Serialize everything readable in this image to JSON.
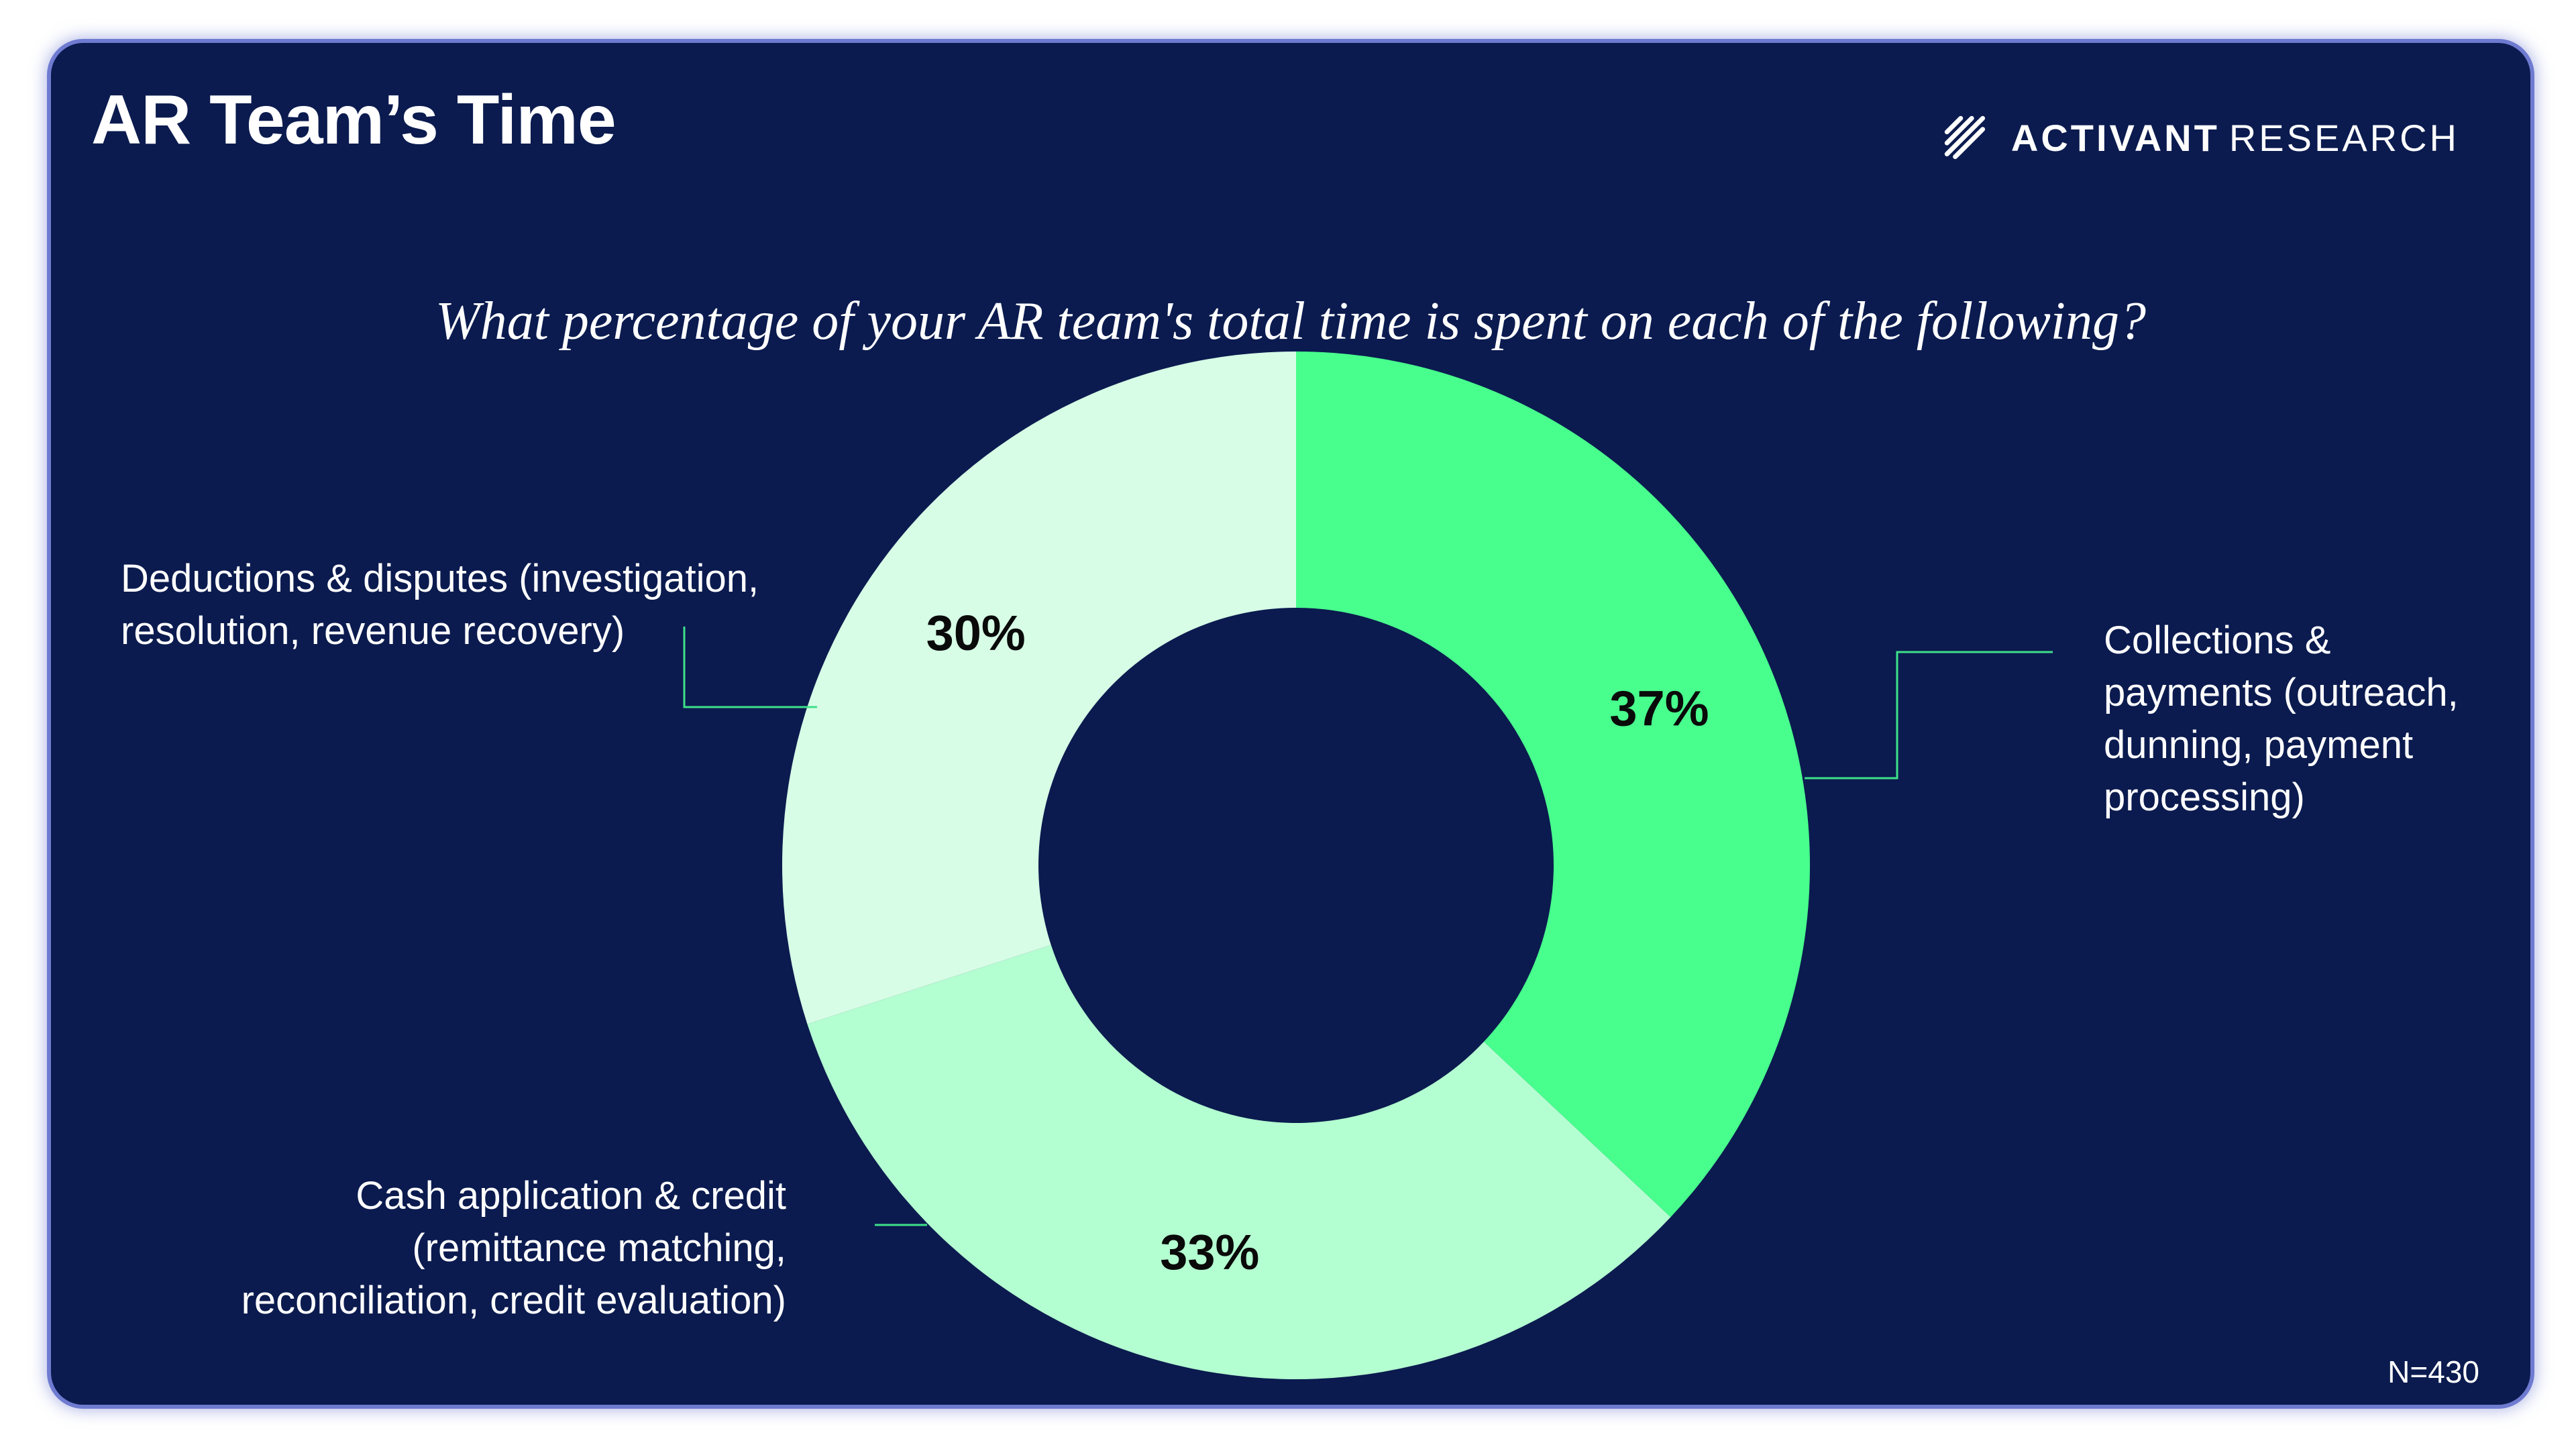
{
  "header": {
    "title": "AR Team’s Time",
    "logo_brand": "ACTIVANT",
    "logo_suffix": "RESEARCH"
  },
  "colors": {
    "background": "#0b1b4f",
    "leader_line": "#3ee08a",
    "text": "#ffffff"
  },
  "chart_data": {
    "type": "pie",
    "donut": true,
    "title": "What percentage of your AR team's total time is spent on each of the following?",
    "start": "12 o'clock, clockwise",
    "slices": [
      {
        "label": "Collections & payments (outreach, dunning, payment processing)",
        "lines": [
          "Collections &",
          "payments (outreach,",
          "dunning, payment",
          "processing)"
        ],
        "value": 37,
        "display": "37%",
        "color": "#48ff8d"
      },
      {
        "label": "Cash application & credit (remittance matching, reconciliation, credit evaluation)",
        "lines": [
          "Cash application & credit",
          "(remittance matching,",
          "reconciliation, credit evaluation)"
        ],
        "value": 33,
        "display": "33%",
        "color": "#b4ffd1"
      },
      {
        "label": "Deductions & disputes (investigation, resolution, revenue recovery)",
        "lines": [
          "Deductions & disputes (investigation,",
          "resolution, revenue recovery)"
        ],
        "value": 30,
        "display": "30%",
        "color": "#d7fde6"
      }
    ],
    "sample_size": "N=430"
  }
}
